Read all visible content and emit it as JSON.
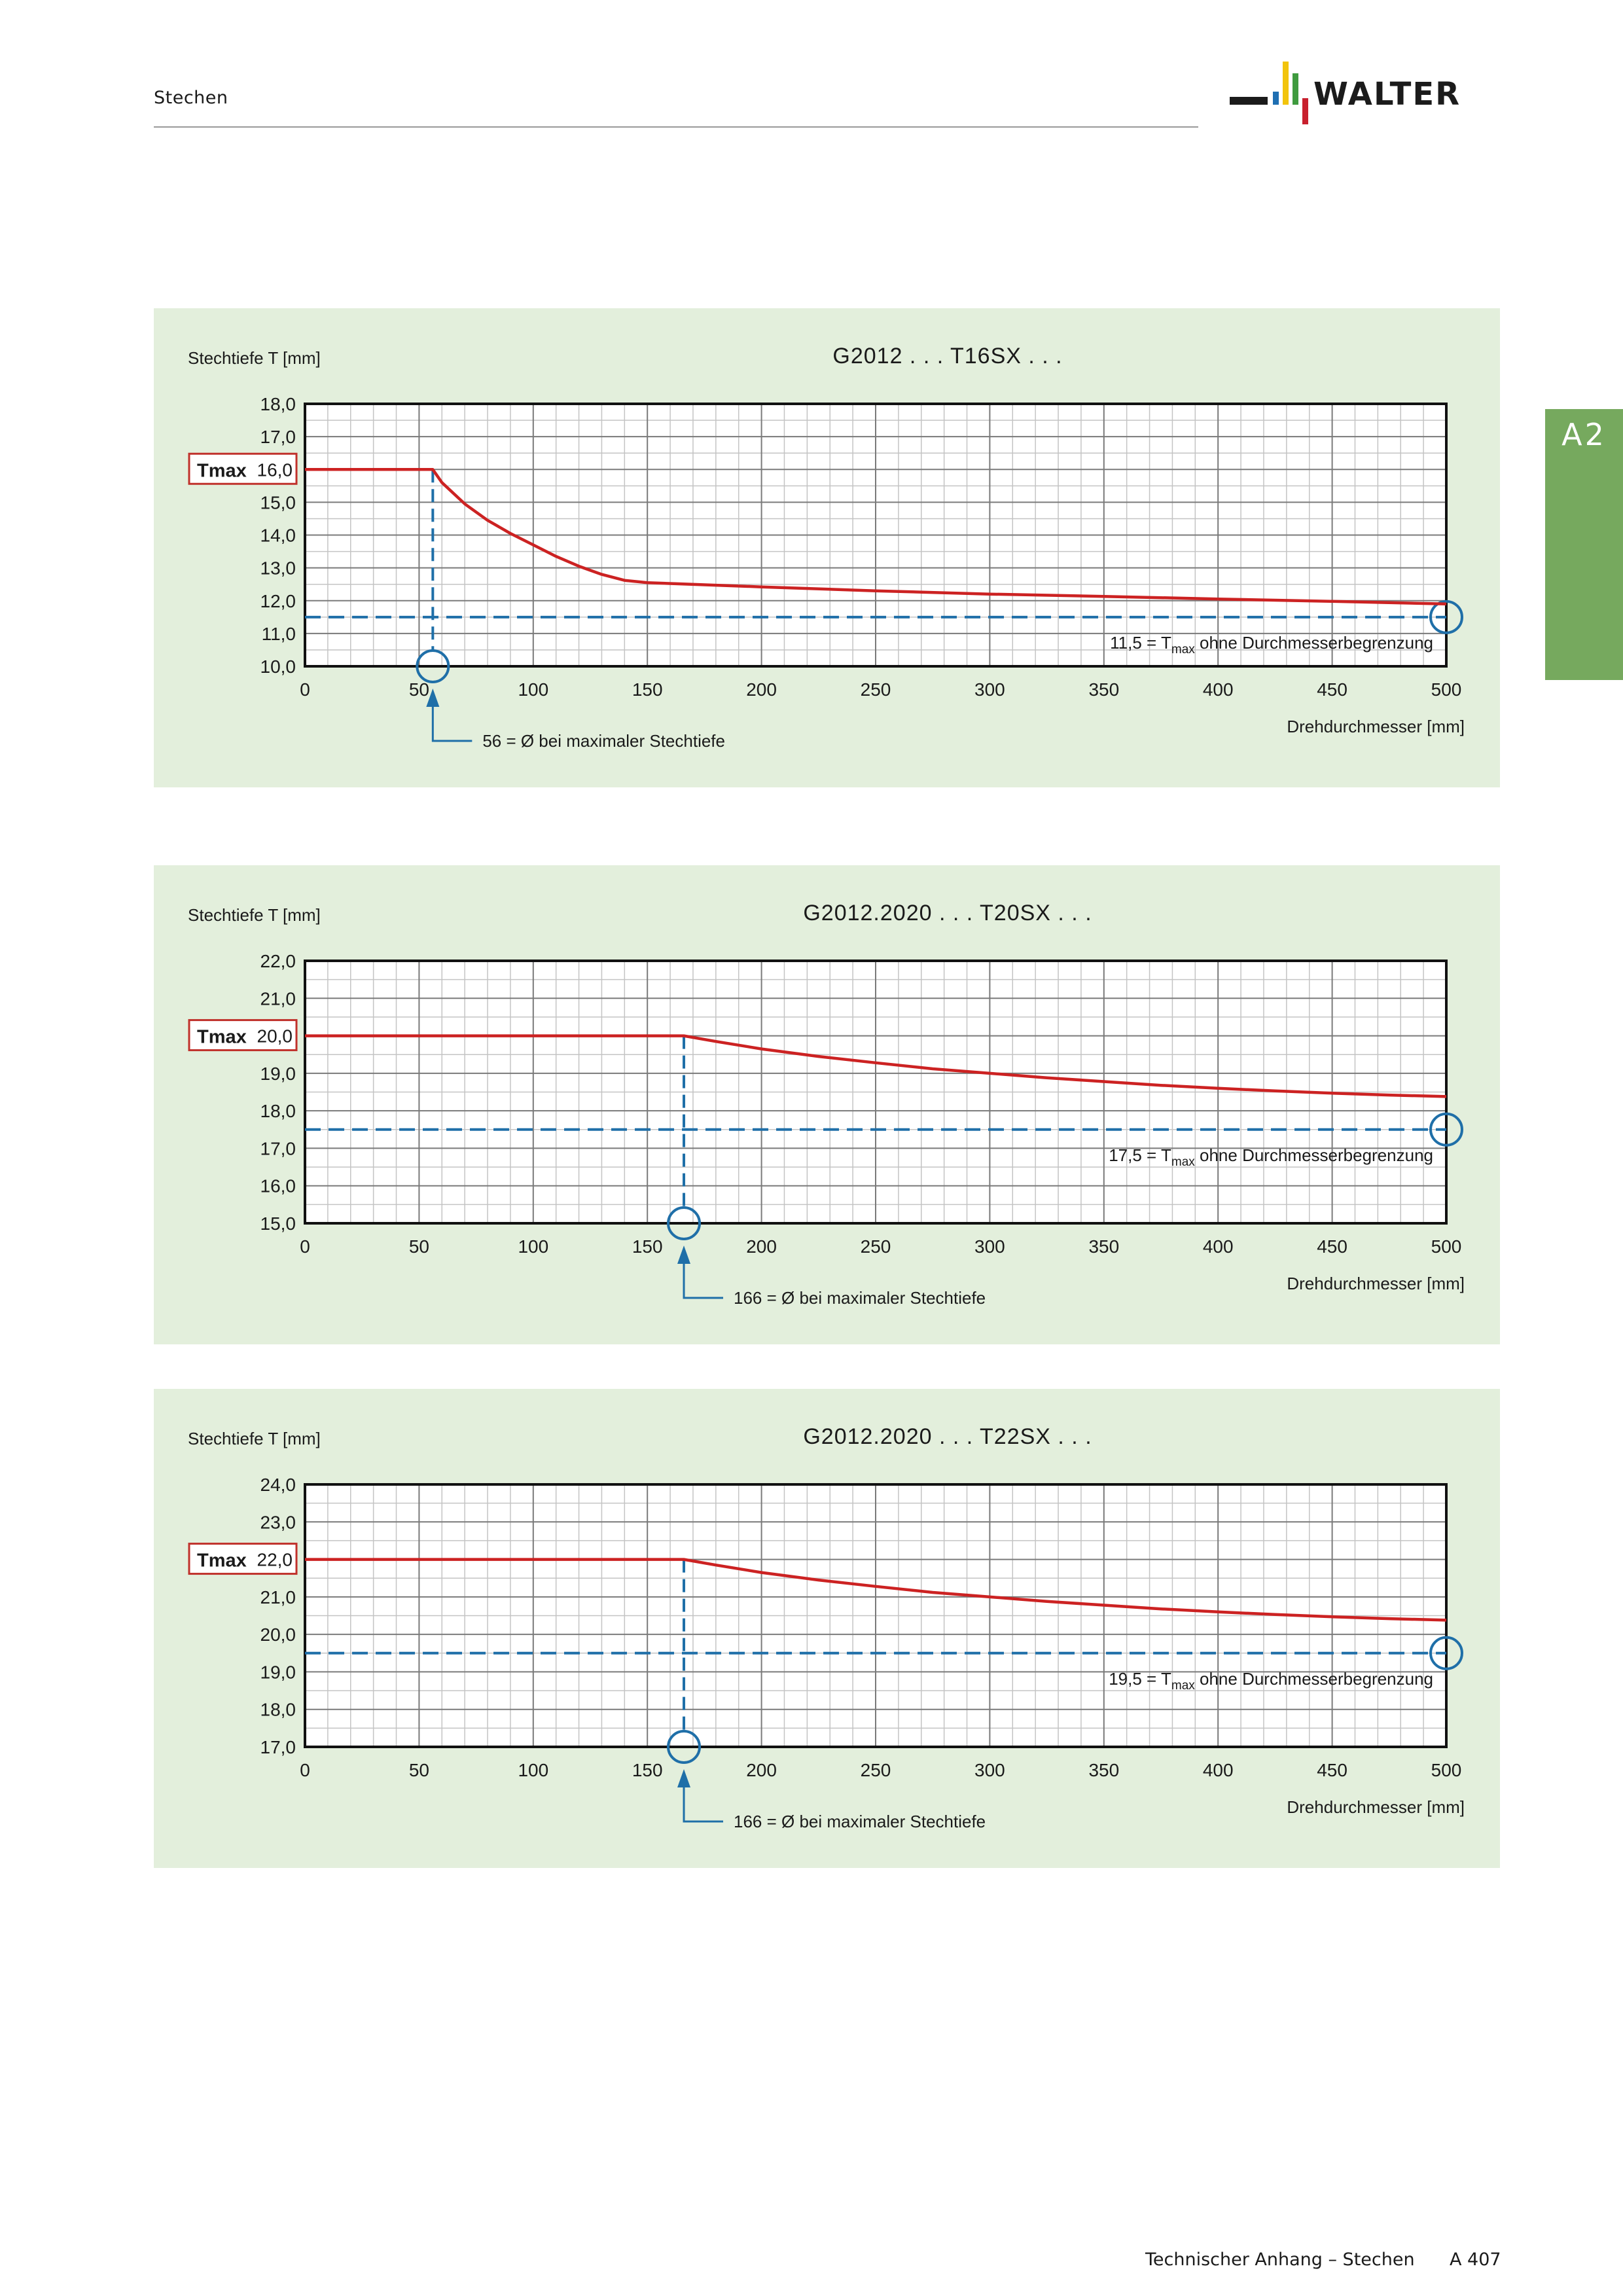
{
  "header": {
    "section_title": "Stechen"
  },
  "side_tab": {
    "label": "A2"
  },
  "brand": {
    "name": "WALTER",
    "colors": {
      "bar_yellow": "#f2c40c",
      "bar_green": "#3f9b3f",
      "bar_blue": "#1f6fb2",
      "bar_red": "#c8202e",
      "logo_dark": "#1b1b1b"
    }
  },
  "colors": {
    "panel_bg": "#e3efdc",
    "curve": "#cc2222",
    "reference": "#1f6fa8",
    "tab": "#76a95e",
    "tmax_box": "#c0312b"
  },
  "chart_data": [
    {
      "type": "line",
      "title": "G2012 . . . T16SX . . .",
      "ylabel": "Stechtiefe T [mm]",
      "xlabel": "Drehdurchmesser [mm]",
      "xlim": [
        0,
        500
      ],
      "ylim": [
        10,
        18
      ],
      "x_ticks": [
        0,
        50,
        100,
        150,
        200,
        250,
        300,
        350,
        400,
        450,
        500
      ],
      "y_ticks": [
        10,
        11,
        12,
        13,
        14,
        15,
        16,
        17,
        18
      ],
      "x_tick_labels": [
        "0",
        "50",
        "100",
        "150",
        "200",
        "250",
        "300",
        "350",
        "400",
        "450",
        "500"
      ],
      "y_tick_labels": [
        "10,0",
        "11,0",
        "12,0",
        "13,0",
        "14,0",
        "15,0",
        "16,0",
        "17,0",
        "18,0"
      ],
      "grid": true,
      "series": [
        {
          "x": [
            0,
            56,
            60,
            70,
            80,
            90,
            100,
            110,
            120,
            130,
            140,
            150,
            200,
            250,
            300,
            350,
            400,
            450,
            500
          ],
          "y": [
            16.0,
            16.0,
            15.6,
            14.95,
            14.45,
            14.05,
            13.7,
            13.35,
            13.05,
            12.8,
            12.62,
            12.55,
            12.42,
            12.3,
            12.2,
            12.13,
            12.05,
            11.98,
            11.9
          ]
        }
      ],
      "tmax": {
        "label": "Tmax",
        "value": 16.0,
        "value_label": "16,0"
      },
      "asymptote": {
        "value": 11.5,
        "prefix": "11,5 = T",
        "subscript": "max",
        "suffix": " ohne Durchmesserbegrenzung"
      },
      "knee": {
        "x": 56,
        "label": "56 = Ø bei maximaler Stechtiefe"
      }
    },
    {
      "type": "line",
      "title": "G2012.2020 . . . T20SX . . .",
      "ylabel": "Stechtiefe T [mm]",
      "xlabel": "Drehdurchmesser [mm]",
      "xlim": [
        0,
        500
      ],
      "ylim": [
        15,
        22
      ],
      "x_ticks": [
        0,
        50,
        100,
        150,
        200,
        250,
        300,
        350,
        400,
        450,
        500
      ],
      "y_ticks": [
        15,
        16,
        17,
        18,
        19,
        20,
        21,
        22
      ],
      "x_tick_labels": [
        "0",
        "50",
        "100",
        "150",
        "200",
        "250",
        "300",
        "350",
        "400",
        "450",
        "500"
      ],
      "y_tick_labels": [
        "15,0",
        "16,0",
        "17,0",
        "18,0",
        "19,0",
        "20,0",
        "21,0",
        "22,0"
      ],
      "grid": true,
      "series": [
        {
          "x": [
            0,
            166,
            180,
            200,
            225,
            250,
            275,
            300,
            325,
            350,
            375,
            400,
            425,
            450,
            475,
            500
          ],
          "y": [
            20.0,
            20.0,
            19.85,
            19.65,
            19.45,
            19.28,
            19.12,
            19.0,
            18.88,
            18.78,
            18.68,
            18.6,
            18.53,
            18.47,
            18.42,
            18.38
          ]
        }
      ],
      "tmax": {
        "label": "Tmax",
        "value": 20.0,
        "value_label": "20,0"
      },
      "asymptote": {
        "value": 17.5,
        "prefix": "17,5 = T",
        "subscript": "max",
        "suffix": " ohne Durchmesserbegrenzung"
      },
      "knee": {
        "x": 166,
        "label": "166 = Ø bei maximaler Stechtiefe"
      }
    },
    {
      "type": "line",
      "title": "G2012.2020 . . . T22SX . . .",
      "ylabel": "Stechtiefe T [mm]",
      "xlabel": "Drehdurchmesser [mm]",
      "xlim": [
        0,
        500
      ],
      "ylim": [
        17,
        24
      ],
      "x_ticks": [
        0,
        50,
        100,
        150,
        200,
        250,
        300,
        350,
        400,
        450,
        500
      ],
      "y_ticks": [
        17,
        18,
        19,
        20,
        21,
        22,
        23,
        24
      ],
      "x_tick_labels": [
        "0",
        "50",
        "100",
        "150",
        "200",
        "250",
        "300",
        "350",
        "400",
        "450",
        "500"
      ],
      "y_tick_labels": [
        "17,0",
        "18,0",
        "19,0",
        "20,0",
        "21,0",
        "22,0",
        "23,0",
        "24,0"
      ],
      "grid": true,
      "series": [
        {
          "x": [
            0,
            166,
            180,
            200,
            225,
            250,
            275,
            300,
            325,
            350,
            375,
            400,
            425,
            450,
            475,
            500
          ],
          "y": [
            22.0,
            22.0,
            21.85,
            21.65,
            21.45,
            21.28,
            21.12,
            21.0,
            20.88,
            20.78,
            20.68,
            20.6,
            20.53,
            20.47,
            20.42,
            20.38
          ]
        }
      ],
      "tmax": {
        "label": "Tmax",
        "value": 22.0,
        "value_label": "22,0"
      },
      "asymptote": {
        "value": 19.5,
        "prefix": "19,5 = T",
        "subscript": "max",
        "suffix": " ohne Durchmesserbegrenzung"
      },
      "knee": {
        "x": 166,
        "label": "166 = Ø bei maximaler Stechtiefe"
      }
    }
  ],
  "footer": {
    "label": "Technischer Anhang – Stechen",
    "page": "A 407"
  }
}
